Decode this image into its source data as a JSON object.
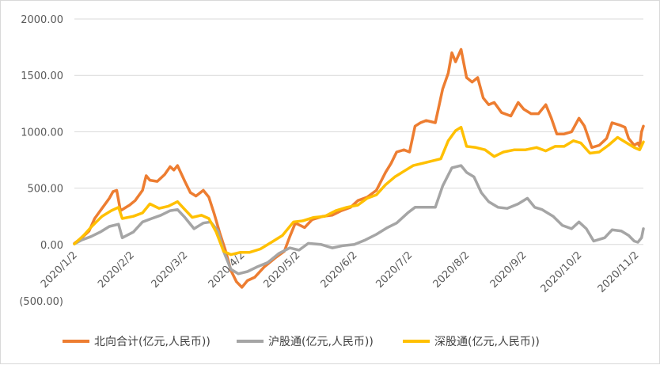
{
  "chart_data": {
    "type": "line",
    "title": "",
    "xlabel": "",
    "ylabel": "",
    "ylim": [
      -500,
      2000
    ],
    "yticks": [
      {
        "value": 2000,
        "label": "2000.00",
        "color": "#595959"
      },
      {
        "value": 1500,
        "label": "1500.00",
        "color": "#595959"
      },
      {
        "value": 1000,
        "label": "1000.00",
        "color": "#595959"
      },
      {
        "value": 500,
        "label": "500.00",
        "color": "#595959"
      },
      {
        "value": 0,
        "label": "0.00",
        "color": "#595959"
      },
      {
        "value": -500,
        "label": "(500.00)",
        "color": "#ff0000"
      }
    ],
    "xlim": [
      "2020-01-02",
      "2020-11-06"
    ],
    "xticks": [
      {
        "date": "2020-01-02",
        "label": "2020/1/2"
      },
      {
        "date": "2020-02-02",
        "label": "2020/2/2"
      },
      {
        "date": "2020-03-02",
        "label": "2020/3/2"
      },
      {
        "date": "2020-04-02",
        "label": "2020/4/2"
      },
      {
        "date": "2020-05-02",
        "label": "2020/5/2"
      },
      {
        "date": "2020-06-02",
        "label": "2020/6/2"
      },
      {
        "date": "2020-07-02",
        "label": "2020/7/2"
      },
      {
        "date": "2020-08-02",
        "label": "2020/8/2"
      },
      {
        "date": "2020-09-02",
        "label": "2020/9/2"
      },
      {
        "date": "2020-10-02",
        "label": "2020/10/2"
      },
      {
        "date": "2020-11-02",
        "label": "2020/11/2"
      }
    ],
    "grid": true,
    "legend_position": "bottom",
    "series": [
      {
        "name": "北向合计(亿元,人民币))",
        "color": "#ed7d31",
        "points": [
          [
            "2020-01-02",
            10
          ],
          [
            "2020-01-06",
            60
          ],
          [
            "2020-01-10",
            120
          ],
          [
            "2020-01-13",
            230
          ],
          [
            "2020-01-17",
            320
          ],
          [
            "2020-01-21",
            410
          ],
          [
            "2020-01-23",
            470
          ],
          [
            "2020-01-25",
            480
          ],
          [
            "2020-01-27",
            300
          ],
          [
            "2020-02-01",
            350
          ],
          [
            "2020-02-04",
            390
          ],
          [
            "2020-02-08",
            480
          ],
          [
            "2020-02-10",
            610
          ],
          [
            "2020-02-12",
            570
          ],
          [
            "2020-02-16",
            560
          ],
          [
            "2020-02-20",
            620
          ],
          [
            "2020-02-23",
            690
          ],
          [
            "2020-02-25",
            660
          ],
          [
            "2020-02-27",
            700
          ],
          [
            "2020-03-02",
            560
          ],
          [
            "2020-03-05",
            460
          ],
          [
            "2020-03-08",
            430
          ],
          [
            "2020-03-12",
            480
          ],
          [
            "2020-03-15",
            420
          ],
          [
            "2020-03-18",
            270
          ],
          [
            "2020-03-21",
            100
          ],
          [
            "2020-03-24",
            -50
          ],
          [
            "2020-03-27",
            -230
          ],
          [
            "2020-03-30",
            -330
          ],
          [
            "2020-04-02",
            -380
          ],
          [
            "2020-04-05",
            -320
          ],
          [
            "2020-04-09",
            -290
          ],
          [
            "2020-04-14",
            -200
          ],
          [
            "2020-04-20",
            -120
          ],
          [
            "2020-04-25",
            -60
          ],
          [
            "2020-04-28",
            70
          ],
          [
            "2020-05-01",
            190
          ],
          [
            "2020-05-06",
            150
          ],
          [
            "2020-05-10",
            220
          ],
          [
            "2020-05-16",
            250
          ],
          [
            "2020-05-21",
            260
          ],
          [
            "2020-05-26",
            300
          ],
          [
            "2020-05-31",
            330
          ],
          [
            "2020-06-04",
            390
          ],
          [
            "2020-06-09",
            420
          ],
          [
            "2020-06-14",
            480
          ],
          [
            "2020-06-19",
            640
          ],
          [
            "2020-06-22",
            720
          ],
          [
            "2020-06-25",
            820
          ],
          [
            "2020-06-29",
            840
          ],
          [
            "2020-07-02",
            820
          ],
          [
            "2020-07-05",
            1050
          ],
          [
            "2020-07-08",
            1080
          ],
          [
            "2020-07-11",
            1100
          ],
          [
            "2020-07-16",
            1080
          ],
          [
            "2020-07-20",
            1380
          ],
          [
            "2020-07-23",
            1520
          ],
          [
            "2020-07-25",
            1700
          ],
          [
            "2020-07-27",
            1620
          ],
          [
            "2020-07-30",
            1730
          ],
          [
            "2020-08-02",
            1480
          ],
          [
            "2020-08-05",
            1440
          ],
          [
            "2020-08-08",
            1480
          ],
          [
            "2020-08-11",
            1300
          ],
          [
            "2020-08-14",
            1240
          ],
          [
            "2020-08-17",
            1260
          ],
          [
            "2020-08-21",
            1170
          ],
          [
            "2020-08-26",
            1140
          ],
          [
            "2020-08-30",
            1260
          ],
          [
            "2020-09-02",
            1200
          ],
          [
            "2020-09-06",
            1160
          ],
          [
            "2020-09-10",
            1160
          ],
          [
            "2020-09-14",
            1240
          ],
          [
            "2020-09-17",
            1120
          ],
          [
            "2020-09-20",
            980
          ],
          [
            "2020-09-24",
            980
          ],
          [
            "2020-09-28",
            1000
          ],
          [
            "2020-10-02",
            1120
          ],
          [
            "2020-10-05",
            1050
          ],
          [
            "2020-10-09",
            860
          ],
          [
            "2020-10-13",
            880
          ],
          [
            "2020-10-17",
            940
          ],
          [
            "2020-10-20",
            1080
          ],
          [
            "2020-10-24",
            1060
          ],
          [
            "2020-10-27",
            1040
          ],
          [
            "2020-10-29",
            940
          ],
          [
            "2020-11-01",
            880
          ],
          [
            "2020-11-03",
            900
          ],
          [
            "2020-11-04",
            870
          ],
          [
            "2020-11-05",
            1000
          ],
          [
            "2020-11-06",
            1050
          ]
        ]
      },
      {
        "name": "沪股通(亿元,人民币))",
        "color": "#a5a5a5",
        "points": [
          [
            "2020-01-02",
            5
          ],
          [
            "2020-01-06",
            40
          ],
          [
            "2020-01-11",
            70
          ],
          [
            "2020-01-16",
            110
          ],
          [
            "2020-01-21",
            160
          ],
          [
            "2020-01-26",
            180
          ],
          [
            "2020-01-28",
            60
          ],
          [
            "2020-02-03",
            110
          ],
          [
            "2020-02-08",
            200
          ],
          [
            "2020-02-13",
            230
          ],
          [
            "2020-02-18",
            260
          ],
          [
            "2020-02-23",
            300
          ],
          [
            "2020-02-27",
            310
          ],
          [
            "2020-03-02",
            240
          ],
          [
            "2020-03-07",
            140
          ],
          [
            "2020-03-12",
            190
          ],
          [
            "2020-03-16",
            200
          ],
          [
            "2020-03-20",
            120
          ],
          [
            "2020-03-23",
            -60
          ],
          [
            "2020-03-27",
            -220
          ],
          [
            "2020-03-31",
            -260
          ],
          [
            "2020-04-05",
            -240
          ],
          [
            "2020-04-10",
            -200
          ],
          [
            "2020-04-16",
            -160
          ],
          [
            "2020-04-22",
            -80
          ],
          [
            "2020-04-28",
            -30
          ],
          [
            "2020-05-03",
            -50
          ],
          [
            "2020-05-08",
            10
          ],
          [
            "2020-05-15",
            0
          ],
          [
            "2020-05-21",
            -30
          ],
          [
            "2020-05-27",
            -10
          ],
          [
            "2020-06-02",
            0
          ],
          [
            "2020-06-08",
            40
          ],
          [
            "2020-06-14",
            90
          ],
          [
            "2020-06-20",
            150
          ],
          [
            "2020-06-25",
            190
          ],
          [
            "2020-07-01",
            280
          ],
          [
            "2020-07-05",
            330
          ],
          [
            "2020-07-10",
            330
          ],
          [
            "2020-07-16",
            330
          ],
          [
            "2020-07-20",
            520
          ],
          [
            "2020-07-25",
            680
          ],
          [
            "2020-07-30",
            700
          ],
          [
            "2020-08-02",
            640
          ],
          [
            "2020-08-06",
            600
          ],
          [
            "2020-08-10",
            460
          ],
          [
            "2020-08-14",
            380
          ],
          [
            "2020-08-19",
            330
          ],
          [
            "2020-08-24",
            320
          ],
          [
            "2020-08-30",
            360
          ],
          [
            "2020-09-04",
            410
          ],
          [
            "2020-09-08",
            330
          ],
          [
            "2020-09-12",
            310
          ],
          [
            "2020-09-18",
            250
          ],
          [
            "2020-09-23",
            170
          ],
          [
            "2020-09-28",
            140
          ],
          [
            "2020-10-02",
            200
          ],
          [
            "2020-10-06",
            140
          ],
          [
            "2020-10-10",
            30
          ],
          [
            "2020-10-16",
            60
          ],
          [
            "2020-10-20",
            130
          ],
          [
            "2020-10-25",
            120
          ],
          [
            "2020-10-29",
            80
          ],
          [
            "2020-11-01",
            30
          ],
          [
            "2020-11-03",
            20
          ],
          [
            "2020-11-05",
            60
          ],
          [
            "2020-11-06",
            140
          ]
        ]
      },
      {
        "name": "深股通(亿元,人民币))",
        "color": "#ffc000",
        "points": [
          [
            "2020-01-02",
            5
          ],
          [
            "2020-01-07",
            80
          ],
          [
            "2020-01-12",
            170
          ],
          [
            "2020-01-17",
            250
          ],
          [
            "2020-01-22",
            300
          ],
          [
            "2020-01-26",
            330
          ],
          [
            "2020-01-28",
            230
          ],
          [
            "2020-02-03",
            250
          ],
          [
            "2020-02-08",
            280
          ],
          [
            "2020-02-12",
            360
          ],
          [
            "2020-02-17",
            320
          ],
          [
            "2020-02-22",
            340
          ],
          [
            "2020-02-27",
            380
          ],
          [
            "2020-03-02",
            310
          ],
          [
            "2020-03-06",
            240
          ],
          [
            "2020-03-11",
            260
          ],
          [
            "2020-03-15",
            230
          ],
          [
            "2020-03-19",
            110
          ],
          [
            "2020-03-23",
            -60
          ],
          [
            "2020-03-27",
            -90
          ],
          [
            "2020-04-01",
            -70
          ],
          [
            "2020-04-06",
            -70
          ],
          [
            "2020-04-12",
            -40
          ],
          [
            "2020-04-18",
            20
          ],
          [
            "2020-04-24",
            80
          ],
          [
            "2020-04-30",
            200
          ],
          [
            "2020-05-05",
            210
          ],
          [
            "2020-05-11",
            240
          ],
          [
            "2020-05-17",
            250
          ],
          [
            "2020-05-23",
            300
          ],
          [
            "2020-05-29",
            330
          ],
          [
            "2020-06-04",
            350
          ],
          [
            "2020-06-09",
            410
          ],
          [
            "2020-06-14",
            440
          ],
          [
            "2020-06-19",
            530
          ],
          [
            "2020-06-24",
            600
          ],
          [
            "2020-06-29",
            650
          ],
          [
            "2020-07-04",
            700
          ],
          [
            "2020-07-09",
            720
          ],
          [
            "2020-07-14",
            740
          ],
          [
            "2020-07-19",
            760
          ],
          [
            "2020-07-23",
            920
          ],
          [
            "2020-07-27",
            1010
          ],
          [
            "2020-07-30",
            1040
          ],
          [
            "2020-08-02",
            870
          ],
          [
            "2020-08-07",
            860
          ],
          [
            "2020-08-12",
            840
          ],
          [
            "2020-08-17",
            780
          ],
          [
            "2020-08-22",
            820
          ],
          [
            "2020-08-28",
            840
          ],
          [
            "2020-09-03",
            840
          ],
          [
            "2020-09-09",
            860
          ],
          [
            "2020-09-14",
            830
          ],
          [
            "2020-09-19",
            870
          ],
          [
            "2020-09-24",
            870
          ],
          [
            "2020-09-29",
            920
          ],
          [
            "2020-10-03",
            900
          ],
          [
            "2020-10-08",
            810
          ],
          [
            "2020-10-13",
            820
          ],
          [
            "2020-10-18",
            880
          ],
          [
            "2020-10-23",
            950
          ],
          [
            "2020-10-28",
            900
          ],
          [
            "2020-11-01",
            860
          ],
          [
            "2020-11-04",
            840
          ],
          [
            "2020-11-06",
            910
          ]
        ]
      }
    ]
  }
}
